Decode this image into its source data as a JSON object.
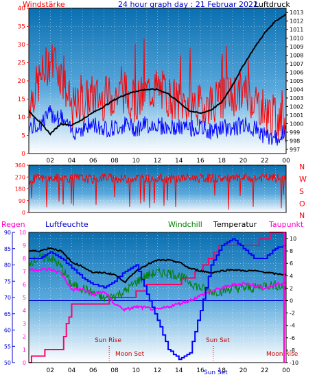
{
  "header": {
    "title": "24 hour graph day : 21 Februar 2022",
    "left_label": "Windstärke",
    "right_label": "Luftdruck"
  },
  "legend_bottom": {
    "regen": "Regen",
    "luftfeuchte": "Luftfeuchte",
    "windchill": "Windchill",
    "temperatur": "Temperatur",
    "taupunkt": "Taupunkt"
  },
  "events": {
    "sun_rise": "Sun Rise",
    "moon_set": "Moon Set",
    "sun_set": "Sun Set",
    "moon_rise": "Moon Rise",
    "sun_set_bottom": "Sun Set"
  },
  "wind_direction_letters": [
    "N",
    "W",
    "S",
    "O",
    "N"
  ],
  "colors": {
    "gust": "#ff0000",
    "wind": "#0000ff",
    "pressure": "#000000",
    "direction": "#ff0000",
    "humidity": "#0000ff",
    "windchill": "#008000",
    "temperature": "#000000",
    "dewpoint": "#ff00ff",
    "rain": "#ff0066",
    "title_blue": "#0000cc"
  },
  "chart_data": [
    {
      "type": "line",
      "id": "wind_pressure",
      "x_ticks": [
        "02",
        "04",
        "06",
        "08",
        "10",
        "12",
        "14",
        "16",
        "18",
        "20",
        "22",
        "00"
      ],
      "y_left_ticks": [
        "0",
        "5",
        "10",
        "15",
        "20",
        "25",
        "30",
        "35",
        "40"
      ],
      "y_left_range": [
        0,
        40
      ],
      "y_right_ticks": [
        "997",
        "998",
        "999",
        "1000",
        "1001",
        "1002",
        "1003",
        "1004",
        "1005",
        "1006",
        "1007",
        "1008",
        "1009",
        "1010",
        "1011",
        "1012",
        "1013"
      ],
      "y_right_range": [
        996.5,
        1013.5
      ],
      "x_hours": [
        0,
        1,
        2,
        3,
        4,
        5,
        6,
        7,
        8,
        9,
        10,
        11,
        12,
        13,
        14,
        15,
        16,
        17,
        18,
        19,
        20,
        21,
        22,
        23,
        24
      ],
      "series": [
        {
          "name": "Windstärke",
          "axis": "left",
          "kind": "gust",
          "values": [
            14,
            20,
            26,
            22,
            12,
            14,
            16,
            15,
            16,
            17,
            14,
            17,
            18,
            16,
            14,
            14,
            13,
            14,
            15,
            16,
            17,
            15,
            12,
            10,
            8
          ]
        },
        {
          "name": "Windstärke",
          "axis": "left",
          "kind": "mean",
          "values": [
            7,
            8,
            11,
            10,
            6,
            7,
            8,
            7,
            7,
            8,
            7,
            8,
            8,
            7,
            7,
            7,
            7,
            6,
            7,
            7,
            8,
            7,
            5,
            4,
            6
          ]
        },
        {
          "name": "Luftdruck",
          "axis": "right",
          "values": [
            1001.5,
            1000.2,
            998.8,
            1000,
            999.8,
            1000.5,
            1001.3,
            1002.0,
            1002.8,
            1003.4,
            1003.8,
            1004.0,
            1004.0,
            1003.5,
            1002.5,
            1001.5,
            1001.2,
            1001.6,
            1002.5,
            1004.5,
            1006.8,
            1008.8,
            1010.6,
            1012.0,
            1012.8
          ]
        }
      ]
    },
    {
      "type": "line",
      "id": "wind_direction",
      "y_ticks": [
        "0",
        "90",
        "180",
        "270",
        "360"
      ],
      "y_range": [
        0,
        360
      ],
      "series": [
        {
          "name": "",
          "values": [
            250,
            260,
            255,
            265,
            258,
            262,
            250,
            270,
            260,
            255,
            265,
            258,
            262,
            255,
            260,
            265,
            258,
            262,
            260,
            255,
            262,
            258,
            265,
            260,
            255
          ]
        }
      ]
    },
    {
      "type": "line",
      "id": "temp_humidity",
      "y_left_ticks": [
        "50",
        "55",
        "60",
        "65",
        "70",
        "75",
        "80",
        "85",
        "90"
      ],
      "y_left_range": [
        50,
        90
      ],
      "y_left_inner_ticks": [
        "0",
        "1",
        "2",
        "3",
        "4",
        "5",
        "6",
        "7",
        "8",
        "9",
        "10"
      ],
      "y_right_ticks": [
        "-10",
        "-8",
        "-6",
        "-4",
        "-2",
        "0",
        "2",
        "4",
        "6",
        "8",
        "10"
      ],
      "y_right_range": [
        -10,
        11
      ],
      "series": [
        {
          "name": "Luftfeuchte",
          "axis": "left",
          "values": [
            82,
            82,
            84,
            82,
            79,
            76,
            74,
            73,
            75,
            78,
            80,
            71,
            63,
            54,
            51,
            53,
            66,
            80,
            86,
            88,
            85,
            82,
            82,
            85,
            86
          ]
        },
        {
          "name": "Temperatur",
          "axis": "right",
          "values": [
            8,
            8,
            8.5,
            8,
            6.2,
            5.5,
            4.5,
            4.5,
            4.2,
            3.0,
            4.8,
            5.8,
            6.5,
            6.5,
            6.2,
            5.2,
            4.8,
            4.5,
            4.8,
            5.0,
            4.8,
            4.8,
            4.6,
            4.3,
            4.2
          ]
        },
        {
          "name": "Windchill",
          "axis": "right",
          "values": [
            6.2,
            6.8,
            7.0,
            5.5,
            2.5,
            2.0,
            1.2,
            0.3,
            0.8,
            1.5,
            3.0,
            4.0,
            4.5,
            4.5,
            4.0,
            3.0,
            2.0,
            1.5,
            1.5,
            2.0,
            2.0,
            2.0,
            2.5,
            2.5,
            2.0
          ]
        },
        {
          "name": "Taupunkt",
          "axis": "right",
          "values": [
            5.0,
            5.0,
            5.0,
            4.5,
            1.8,
            1.8,
            1.0,
            1.5,
            -0.5,
            -1.5,
            -1.0,
            -1.2,
            -1.5,
            -1.0,
            -0.5,
            0.0,
            0.8,
            1.5,
            2.0,
            2.5,
            2.8,
            2.5,
            2.0,
            2.5,
            3.0
          ]
        },
        {
          "name": "Regen",
          "axis": "left_inner",
          "values": [
            0.2,
            0.5,
            1.0,
            1.0,
            4.5,
            4.5,
            4.5,
            4.5,
            5.0,
            5.0,
            5.3,
            5.8,
            6.0,
            6.2,
            6.2,
            6.5,
            7.0,
            8.0,
            9.0,
            9.0,
            9.0,
            9.0,
            9.5,
            10.0,
            10.0
          ]
        }
      ]
    }
  ]
}
